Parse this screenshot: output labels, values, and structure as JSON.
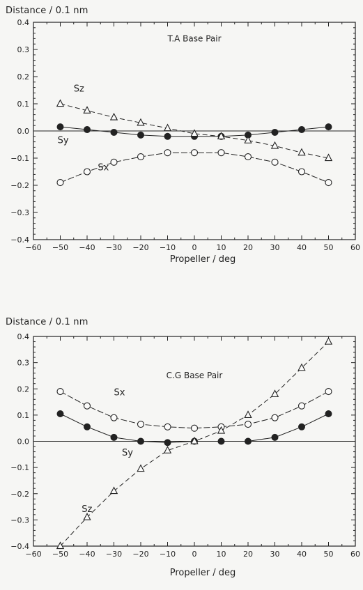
{
  "chart_data": [
    {
      "type": "line",
      "title": "T.A Base Pair",
      "xlabel": "Propeller / deg",
      "ylabel": "Distance / 0.1 nm",
      "xlim": [
        -60,
        60
      ],
      "ylim": [
        -0.4,
        0.4
      ],
      "xticks": [
        -60,
        -50,
        -40,
        -30,
        -20,
        -10,
        0,
        10,
        20,
        30,
        40,
        50,
        60
      ],
      "yticks": [
        -0.4,
        -0.3,
        -0.2,
        -0.1,
        0.0,
        0.1,
        0.2,
        0.3,
        0.4
      ],
      "x": [
        -50,
        -40,
        -30,
        -20,
        -10,
        0,
        10,
        20,
        30,
        40,
        50
      ],
      "series": [
        {
          "name": "Sx",
          "marker": "open-circle",
          "values": [
            -0.19,
            -0.15,
            -0.115,
            -0.095,
            -0.08,
            -0.08,
            -0.08,
            -0.095,
            -0.115,
            -0.15,
            -0.19
          ]
        },
        {
          "name": "Sy",
          "marker": "filled-circle",
          "values": [
            0.015,
            0.005,
            -0.005,
            -0.015,
            -0.02,
            -0.02,
            -0.02,
            -0.015,
            -0.005,
            0.005,
            0.015
          ]
        },
        {
          "name": "Sz",
          "marker": "open-triangle",
          "values": [
            0.1,
            0.075,
            0.05,
            0.03,
            0.01,
            -0.01,
            -0.02,
            -0.035,
            -0.055,
            -0.08,
            -0.1
          ]
        }
      ],
      "grid": false,
      "zero_line": true
    },
    {
      "type": "line",
      "title": "C.G Base Pair",
      "xlabel": "Propeller / deg",
      "ylabel": "Distance / 0.1 nm",
      "xlim": [
        -60,
        60
      ],
      "ylim": [
        -0.4,
        0.4
      ],
      "xticks": [
        -60,
        -50,
        -40,
        -30,
        -20,
        -10,
        0,
        10,
        20,
        30,
        40,
        50,
        60
      ],
      "yticks": [
        -0.4,
        -0.3,
        -0.2,
        -0.1,
        0.0,
        0.1,
        0.2,
        0.3,
        0.4
      ],
      "x": [
        -50,
        -40,
        -30,
        -20,
        -10,
        0,
        10,
        20,
        30,
        40,
        50
      ],
      "series": [
        {
          "name": "Sx",
          "marker": "open-circle",
          "values": [
            0.19,
            0.135,
            0.09,
            0.065,
            0.055,
            0.05,
            0.055,
            0.065,
            0.09,
            0.135,
            0.19
          ]
        },
        {
          "name": "Sy",
          "marker": "filled-circle",
          "values": [
            0.105,
            0.055,
            0.015,
            0.0,
            -0.005,
            0.0,
            0.0,
            0.0,
            0.015,
            0.055,
            0.105
          ]
        },
        {
          "name": "Sz",
          "marker": "open-triangle",
          "values": [
            -0.4,
            -0.29,
            -0.19,
            -0.105,
            -0.035,
            0.0,
            0.04,
            0.1,
            0.18,
            0.28,
            0.38
          ]
        }
      ],
      "grid": false,
      "zero_line": true
    }
  ],
  "colors": {
    "ink": "#222222",
    "background": "#f6f6f4"
  }
}
